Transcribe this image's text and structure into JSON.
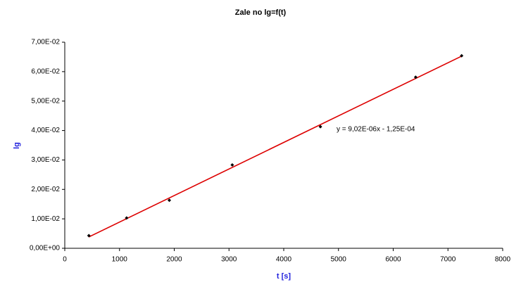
{
  "chart_data": {
    "type": "scatter",
    "title": "Zale  no     lg=f(t)",
    "x_label": "t [s]",
    "y_label": "lg",
    "x": [
      440,
      1130,
      1910,
      3060,
      4670,
      6410,
      7250
    ],
    "series": [
      {
        "name": "lg",
        "color": "#000000",
        "values": [
          0.0043,
          0.0103,
          0.0163,
          0.0283,
          0.0413,
          0.0581,
          0.0654
        ]
      }
    ],
    "trendline": {
      "color": "#dd0000",
      "x": [
        440,
        7250
      ],
      "values": [
        0.00384,
        0.06527
      ],
      "label": "y = 9,02E-06x - 1,25E-04"
    },
    "xlim": [
      0,
      8000
    ],
    "xticks": [
      0,
      1000,
      2000,
      3000,
      4000,
      5000,
      6000,
      7000,
      8000
    ],
    "ylim": [
      0,
      0.07
    ],
    "yticks": [
      {
        "value": 0,
        "label": "0,00E+00"
      },
      {
        "value": 0.01,
        "label": "1,00E-02"
      },
      {
        "value": 0.02,
        "label": "2,00E-02"
      },
      {
        "value": 0.03,
        "label": "3,00E-02"
      },
      {
        "value": 0.04,
        "label": "4,00E-02"
      },
      {
        "value": 0.05,
        "label": "5,00E-02"
      },
      {
        "value": 0.06,
        "label": "6,00E-02"
      },
      {
        "value": 0.07,
        "label": "7,00E-02"
      }
    ],
    "grid": false
  }
}
